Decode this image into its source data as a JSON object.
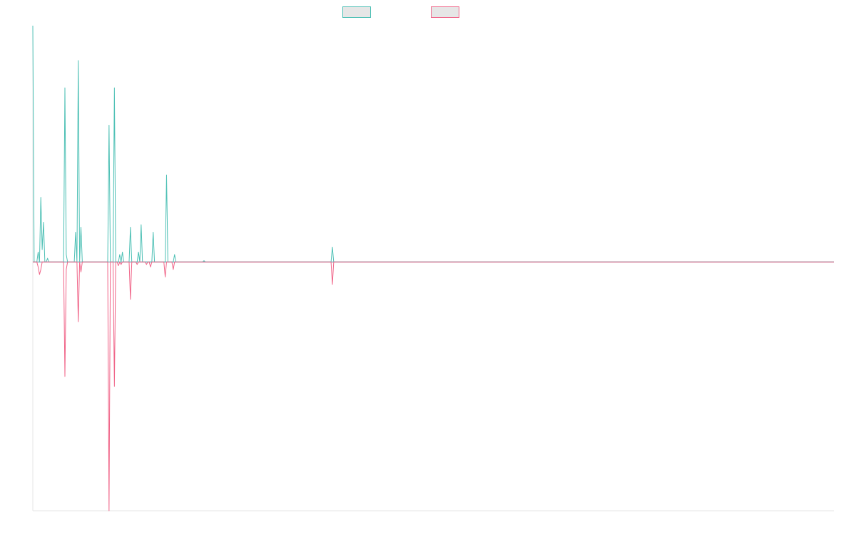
{
  "colors": {
    "up_series": "#4dc0b5",
    "down_series": "#f06488",
    "axis": "#e5e5e5",
    "baseline": "#8a9bb0",
    "swatch_fill": "#e6e6e6"
  },
  "chart_data": {
    "type": "line",
    "title": "",
    "xlabel": "",
    "ylabel": "",
    "grid": false,
    "legend_position": "top-center",
    "x_count": 600,
    "ylim": [
      -100,
      95
    ],
    "series": [
      {
        "legend_label": "",
        "color": "#4dc0b5",
        "values": {
          "0": 95,
          "1": 0,
          "2": 0,
          "3": 0,
          "4": 4,
          "5": 0,
          "6": 26,
          "7": 5,
          "8": 16,
          "9": 0,
          "10": 0,
          "11": 1.5,
          "12": 0,
          "13": 0,
          "14": 0,
          "15": 0,
          "16": 0,
          "17": 0,
          "18": 0,
          "19": 0,
          "20": 0,
          "21": 0,
          "22": 0,
          "23": 0,
          "24": 70,
          "25": 3,
          "26": 0,
          "27": 0,
          "28": 0,
          "29": 0,
          "30": 0,
          "31": 0,
          "32": 12,
          "33": 0,
          "34": 81,
          "35": 0,
          "36": 14,
          "37": 0,
          "38": 0,
          "39": 0,
          "40": 0,
          "41": 0,
          "42": 0,
          "43": 0,
          "44": 0,
          "45": 0,
          "46": 0,
          "47": 0,
          "48": 0,
          "49": 0,
          "50": 0,
          "51": 0,
          "52": 0,
          "53": 0,
          "54": 0,
          "55": 0,
          "56": 0,
          "57": 55,
          "58": 0,
          "59": 0,
          "60": 0,
          "61": 70,
          "62": 0,
          "63": 0,
          "64": 0,
          "65": 3,
          "66": 0,
          "67": 4,
          "68": 0,
          "69": 0,
          "70": 0,
          "71": 0,
          "72": 0,
          "73": 14,
          "74": 0,
          "75": 0,
          "76": 0,
          "77": 0,
          "78": 0,
          "79": 4,
          "80": 0,
          "81": 15,
          "82": 0,
          "83": 0,
          "84": 0,
          "85": 0,
          "86": 0,
          "87": 0,
          "88": 0,
          "89": 0,
          "90": 12,
          "91": 0,
          "92": 0,
          "93": 0,
          "94": 0,
          "95": 0,
          "96": 0,
          "97": 0,
          "98": 0,
          "99": 0,
          "100": 35,
          "101": 0,
          "102": 0,
          "103": 0,
          "104": 0,
          "105": 0,
          "106": 3,
          "107": 0,
          "108": 0,
          "109": 0,
          "110": 0,
          "111": 0,
          "112": 0,
          "113": 0,
          "114": 0,
          "115": 0,
          "116": 0,
          "117": 0,
          "118": 0,
          "119": 0,
          "120": 0,
          "121": 0,
          "122": 0,
          "123": 0,
          "124": 0,
          "125": 0,
          "126": 0,
          "127": 0,
          "128": 0.5,
          "129": 0,
          "130": 0,
          "131": 0,
          "132": 0,
          "133": 0,
          "134": 0,
          "135": 0,
          "136": 0,
          "137": 0,
          "138": 0,
          "139": 0,
          "140": 0,
          "141": 0,
          "142": 0,
          "143": 0,
          "144": 0,
          "145": 0,
          "146": 0,
          "147": 0,
          "148": 0,
          "149": 0,
          "150": 0,
          "151": 0,
          "152": 0,
          "153": 0,
          "154": 0,
          "155": 0,
          "156": 0,
          "157": 0,
          "158": 0,
          "159": 0,
          "160": 0,
          "161": 0,
          "162": 0,
          "163": 0,
          "164": 0,
          "165": 0,
          "166": 0,
          "167": 0,
          "168": 0,
          "169": 0,
          "170": 0,
          "171": 0,
          "172": 0,
          "173": 0,
          "174": 0,
          "175": 0,
          "176": 0,
          "177": 0,
          "178": 0,
          "179": 0,
          "180": 0,
          "181": 0,
          "182": 0,
          "183": 0,
          "184": 0,
          "185": 0,
          "186": 0,
          "187": 0,
          "188": 0,
          "189": 0,
          "190": 0,
          "191": 0,
          "192": 0,
          "193": 0,
          "194": 0,
          "195": 0,
          "196": 0,
          "197": 0,
          "198": 0,
          "199": 0,
          "200": 0,
          "201": 0,
          "202": 0,
          "203": 0,
          "204": 0,
          "205": 0,
          "206": 0,
          "207": 0,
          "208": 0,
          "209": 0,
          "210": 0,
          "211": 0,
          "212": 0,
          "213": 0,
          "214": 0,
          "215": 0,
          "216": 0,
          "217": 0,
          "218": 0,
          "219": 0,
          "220": 0,
          "221": 0,
          "222": 0,
          "223": 0,
          "224": 6,
          "225": 0,
          "226": 0
        }
      },
      {
        "legend_label": "",
        "color": "#f06488",
        "values": {
          "0": 0,
          "1": 0,
          "2": 0,
          "3": 0,
          "4": -2,
          "5": -5,
          "6": -3,
          "7": 0,
          "8": 0,
          "9": 0,
          "10": 0,
          "11": 0,
          "12": 0,
          "13": 0,
          "14": 0,
          "15": 0,
          "16": 0,
          "17": 0,
          "18": 0,
          "19": 0,
          "20": 0,
          "21": 0,
          "22": 0,
          "23": 0,
          "24": -46,
          "25": -3,
          "26": 0,
          "27": 0,
          "28": 0,
          "29": 0,
          "30": 0,
          "31": 0,
          "32": 0,
          "33": 0,
          "34": -24,
          "35": 0,
          "36": -4,
          "37": 0,
          "38": 0,
          "39": 0,
          "40": 0,
          "41": 0,
          "42": 0,
          "43": 0,
          "44": 0,
          "45": 0,
          "46": 0,
          "47": 0,
          "48": 0,
          "49": 0,
          "50": 0,
          "51": 0,
          "52": 0,
          "53": 0,
          "54": 0,
          "55": 0,
          "56": 0,
          "57": -100,
          "58": 0,
          "59": 0,
          "60": 0,
          "61": -50,
          "62": 0,
          "63": 0,
          "64": -1.5,
          "65": 0,
          "66": -1,
          "67": 0,
          "68": 0,
          "69": 0,
          "70": 0,
          "71": 0,
          "72": 0,
          "73": -15,
          "74": 0,
          "75": 0,
          "76": 0,
          "77": 0,
          "78": -1,
          "79": 0,
          "80": 0,
          "81": 0,
          "82": 0,
          "83": 0,
          "84": 0,
          "85": -1,
          "86": 0,
          "87": 0,
          "88": -2,
          "89": 0,
          "90": 0,
          "91": 0,
          "92": 0,
          "93": 0,
          "94": 0,
          "95": 0,
          "96": 0,
          "97": 0,
          "98": 0,
          "99": -6,
          "100": 0,
          "101": 0,
          "102": 0,
          "103": 0,
          "104": 0,
          "105": -3,
          "106": 0,
          "107": 0,
          "108": 0,
          "109": 0,
          "110": 0,
          "111": 0,
          "112": 0,
          "113": 0,
          "114": 0,
          "115": 0,
          "116": 0,
          "117": 0,
          "118": 0,
          "119": 0,
          "120": 0,
          "121": 0,
          "122": 0,
          "123": 0,
          "124": 0,
          "125": 0,
          "126": 0,
          "127": 0,
          "128": 0,
          "129": 0,
          "130": 0,
          "131": 0,
          "132": 0,
          "133": 0,
          "134": 0,
          "135": 0,
          "136": 0,
          "137": 0,
          "138": 0,
          "139": 0,
          "140": 0,
          "141": 0,
          "142": 0,
          "143": 0,
          "144": 0,
          "145": 0,
          "146": 0,
          "147": 0,
          "148": 0,
          "149": 0,
          "150": 0,
          "151": 0,
          "152": 0,
          "153": 0,
          "154": 0,
          "155": 0,
          "156": 0,
          "157": 0,
          "158": 0,
          "159": 0,
          "160": 0,
          "161": 0,
          "162": 0,
          "163": 0,
          "164": 0,
          "165": 0,
          "166": 0,
          "167": 0,
          "168": 0,
          "169": 0,
          "170": 0,
          "171": 0,
          "172": 0,
          "173": 0,
          "174": 0,
          "175": 0,
          "176": 0,
          "177": 0,
          "178": 0,
          "179": 0,
          "180": 0,
          "181": 0,
          "182": 0,
          "183": 0,
          "184": 0,
          "185": 0,
          "186": 0,
          "187": 0,
          "188": 0,
          "189": 0,
          "190": 0,
          "191": 0,
          "192": 0,
          "193": 0,
          "194": 0,
          "195": 0,
          "196": 0,
          "197": 0,
          "198": 0,
          "199": 0,
          "200": 0,
          "201": 0,
          "202": 0,
          "203": 0,
          "204": 0,
          "205": 0,
          "206": 0,
          "207": 0,
          "208": 0,
          "209": 0,
          "210": 0,
          "211": 0,
          "212": 0,
          "213": 0,
          "214": 0,
          "215": 0,
          "216": 0,
          "217": 0,
          "218": 0,
          "219": 0,
          "220": 0,
          "221": 0,
          "222": 0,
          "223": 0,
          "224": -9,
          "225": 0,
          "226": 0
        }
      }
    ]
  }
}
